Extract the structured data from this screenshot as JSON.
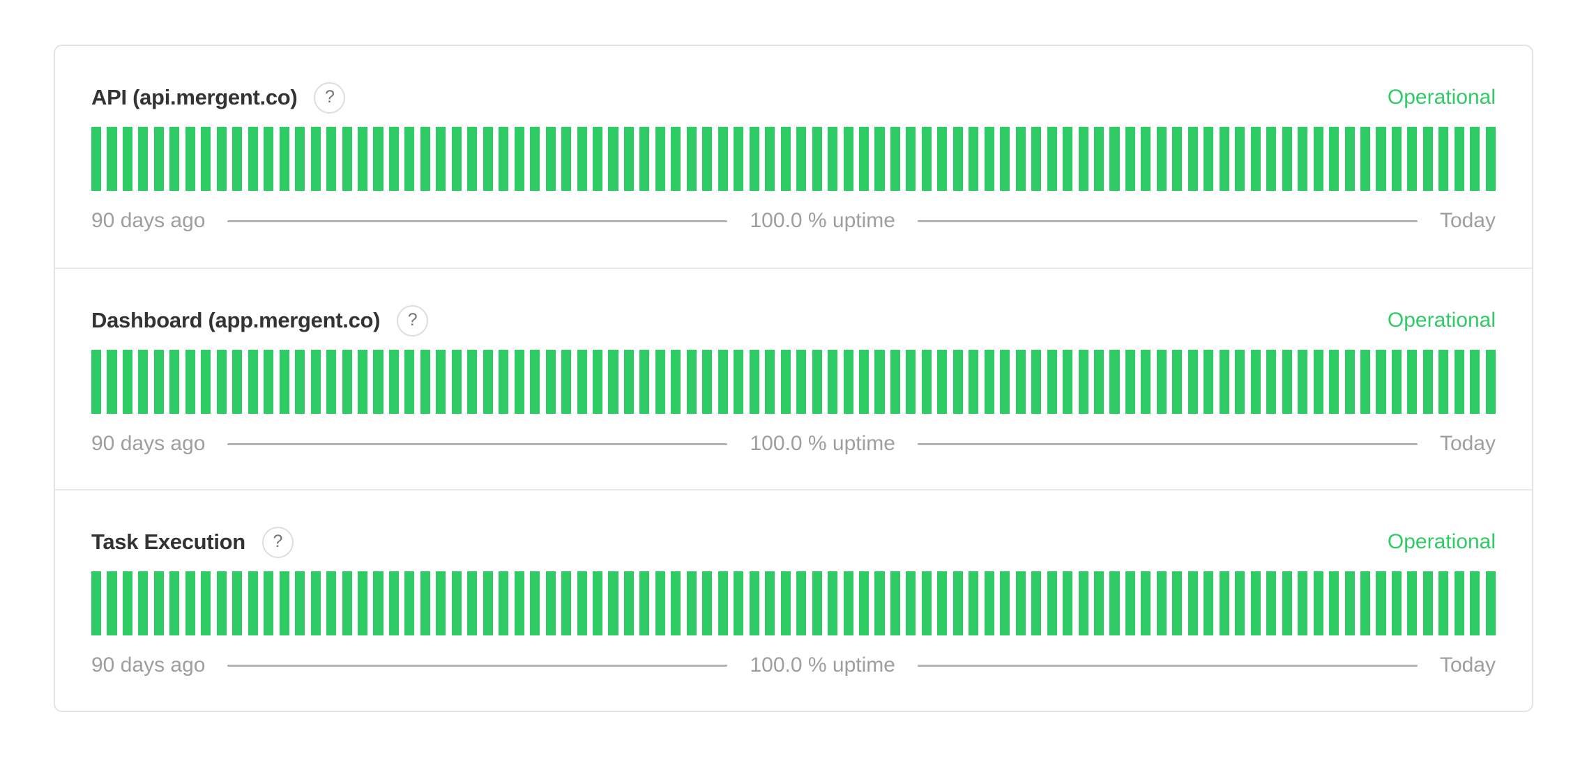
{
  "colors": {
    "green": "#2fcc66",
    "title-text": "#333333",
    "muted-text": "#9e9e9e",
    "legend-line": "#b3b3b3",
    "card-border": "#e4e4e4",
    "divider": "#e9e9e9",
    "help-border": "#dedede",
    "help-text": "#757575"
  },
  "card": {
    "services": [
      {
        "name": "API (api.mergent.co)",
        "help_icon_glyph": "?",
        "status": "Operational",
        "legend": {
          "left": "90 days ago",
          "center": "100.0 % uptime",
          "right": "Today"
        },
        "uptime_bars": {
          "count": 90,
          "status": "operational",
          "uptime_percent": 100.0
        }
      },
      {
        "name": "Dashboard (app.mergent.co)",
        "help_icon_glyph": "?",
        "status": "Operational",
        "legend": {
          "left": "90 days ago",
          "center": "100.0 % uptime",
          "right": "Today"
        },
        "uptime_bars": {
          "count": 90,
          "status": "operational",
          "uptime_percent": 100.0
        }
      },
      {
        "name": "Task Execution",
        "help_icon_glyph": "?",
        "status": "Operational",
        "legend": {
          "left": "90 days ago",
          "center": "100.0 % uptime",
          "right": "Today"
        },
        "uptime_bars": {
          "count": 90,
          "status": "operational",
          "uptime_percent": 100.0
        }
      }
    ]
  }
}
